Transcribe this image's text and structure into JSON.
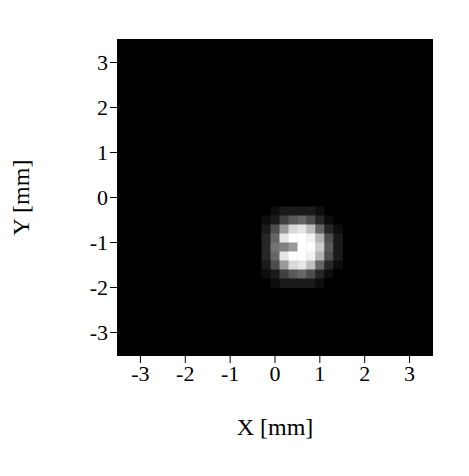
{
  "chart_data": {
    "type": "heatmap",
    "x_label": "X [mm]",
    "y_label": "Y [mm]",
    "xlim": [
      -3.5,
      3.5
    ],
    "ylim": [
      -3.5,
      3.5
    ],
    "xticks": [
      -3,
      -2,
      -1,
      0,
      1,
      2,
      3
    ],
    "yticks": [
      -3,
      -2,
      -1,
      0,
      1,
      2,
      3
    ],
    "x": [
      -0.2,
      0,
      0.2,
      0.4,
      0.6,
      0.8,
      1.0,
      1.2,
      1.4
    ],
    "y": [
      -0.3,
      -0.5,
      -0.7,
      -0.9,
      -1.1,
      -1.3,
      -1.5,
      -1.7,
      -1.9
    ],
    "z": [
      [
        0,
        0.05,
        0.1,
        0.1,
        0.1,
        0.1,
        0.05,
        0,
        0
      ],
      [
        0.05,
        0.1,
        0.25,
        0.35,
        0.4,
        0.3,
        0.15,
        0.05,
        0
      ],
      [
        0.1,
        0.3,
        0.6,
        0.85,
        0.9,
        0.75,
        0.4,
        0.15,
        0.05
      ],
      [
        0.15,
        0.4,
        0.9,
        1,
        1,
        0.95,
        0.7,
        0.3,
        0.1
      ],
      [
        0.15,
        0.45,
        0.5,
        0.6,
        1,
        1,
        0.8,
        0.35,
        0.1
      ],
      [
        0.15,
        0.4,
        0.9,
        1,
        1,
        0.95,
        0.7,
        0.3,
        0.1
      ],
      [
        0.1,
        0.3,
        0.6,
        0.85,
        0.9,
        0.75,
        0.4,
        0.15,
        0.05
      ],
      [
        0.05,
        0.1,
        0.25,
        0.35,
        0.4,
        0.3,
        0.15,
        0.05,
        0
      ],
      [
        0,
        0.05,
        0.1,
        0.1,
        0.1,
        0.1,
        0.05,
        0,
        0
      ]
    ],
    "zlim": [
      0,
      1
    ]
  }
}
